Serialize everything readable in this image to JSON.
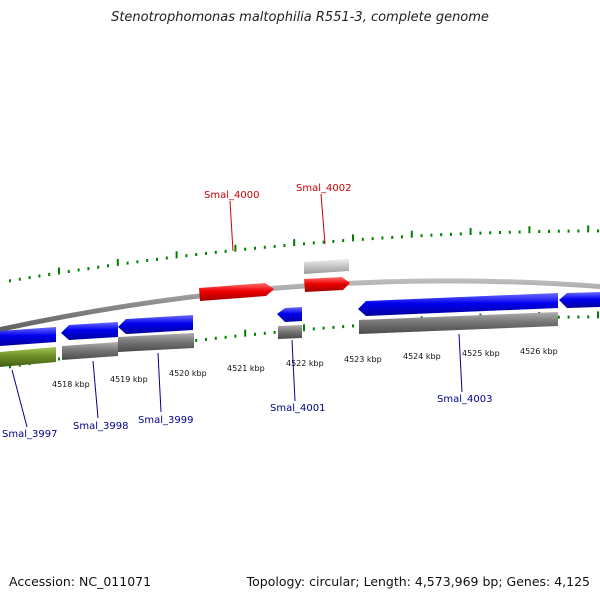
{
  "title": "Stenotrophomonas maltophilia R551-3, complete genome",
  "footer": {
    "accession": "Accession: NC_011071",
    "summary": "Topology: circular; Length: 4,573,969 bp; Genes: 4,125"
  },
  "colors": {
    "forward_cds": "#0000ee",
    "reverse_cds": "#ee0000",
    "forward_gene": "#777777",
    "reverse_gene": "#c8c8c8",
    "other_feature": "#6b8e23",
    "ticks": "#008000",
    "backbone": "#8a8a8a",
    "forward_label": "#00008b",
    "reverse_label": "#cc0000"
  },
  "axis_labels": [
    "4518 kbp",
    "4519 kbp",
    "4520 kbp",
    "4521 kbp",
    "4522 kbp",
    "4523 kbp",
    "4524 kbp",
    "4525 kbp",
    "4526 kbp"
  ],
  "gene_labels": {
    "Smal_3997": "Smal_3997",
    "Smal_3998": "Smal_3998",
    "Smal_3999": "Smal_3999",
    "Smal_4000": "Smal_4000",
    "Smal_4001": "Smal_4001",
    "Smal_4002": "Smal_4002",
    "Smal_4003": "Smal_4003"
  }
}
